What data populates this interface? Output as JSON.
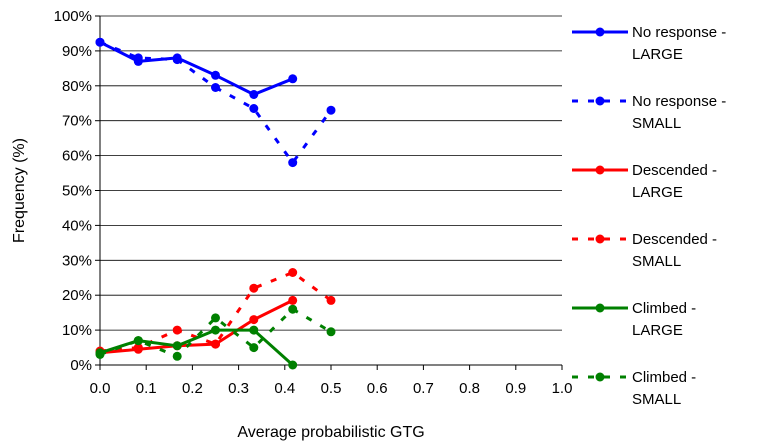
{
  "chart_data": {
    "type": "line",
    "xlabel": "Average probabilistic GTG",
    "ylabel": "Frequency (%)",
    "xlim": [
      0.0,
      1.0
    ],
    "ylim": [
      0,
      100
    ],
    "x_ticks": [
      "0.0",
      "0.1",
      "0.2",
      "0.3",
      "0.4",
      "0.5",
      "0.6",
      "0.7",
      "0.8",
      "0.9",
      "1.0"
    ],
    "y_ticks": [
      "0%",
      "10%",
      "20%",
      "30%",
      "40%",
      "50%",
      "60%",
      "70%",
      "80%",
      "90%",
      "100%"
    ],
    "grid": "horizontal",
    "legend_position": "right",
    "series": [
      {
        "legend": [
          "No response -",
          "LARGE"
        ],
        "color": "#0000FF",
        "dash": "solid",
        "points": [
          [
            0.0,
            92.5
          ],
          [
            0.083,
            87.0
          ],
          [
            0.167,
            88.0
          ],
          [
            0.25,
            83.0
          ],
          [
            0.333,
            77.5
          ],
          [
            0.417,
            82.0
          ]
        ]
      },
      {
        "legend": [
          "No response -",
          "SMALL"
        ],
        "color": "#0000FF",
        "dash": "dotted",
        "points": [
          [
            0.0,
            92.5
          ],
          [
            0.083,
            88.0
          ],
          [
            0.167,
            87.5
          ],
          [
            0.25,
            79.5
          ],
          [
            0.333,
            73.5
          ],
          [
            0.417,
            58.0
          ],
          [
            0.5,
            73.0
          ]
        ]
      },
      {
        "legend": [
          "Descended -",
          "LARGE"
        ],
        "color": "#FF0000",
        "dash": "solid",
        "points": [
          [
            0.0,
            3.5
          ],
          [
            0.083,
            4.5
          ],
          [
            0.167,
            5.5
          ],
          [
            0.25,
            6.0
          ],
          [
            0.333,
            13.0
          ],
          [
            0.417,
            18.5
          ]
        ]
      },
      {
        "legend": [
          "Descended -",
          "SMALL"
        ],
        "color": "#FF0000",
        "dash": "dotted",
        "points": [
          [
            0.0,
            4.0
          ],
          [
            0.083,
            5.0
          ],
          [
            0.167,
            10.0
          ],
          [
            0.25,
            6.0
          ],
          [
            0.333,
            22.0
          ],
          [
            0.417,
            26.5
          ],
          [
            0.5,
            18.5
          ]
        ]
      },
      {
        "legend": [
          "Climbed -",
          "LARGE"
        ],
        "color": "#008000",
        "dash": "solid",
        "points": [
          [
            0.0,
            3.5
          ],
          [
            0.083,
            7.0
          ],
          [
            0.167,
            5.5
          ],
          [
            0.25,
            10.0
          ],
          [
            0.333,
            10.0
          ],
          [
            0.417,
            0.0
          ]
        ]
      },
      {
        "legend": [
          "Climbed -",
          "SMALL"
        ],
        "color": "#008000",
        "dash": "dotted",
        "points": [
          [
            0.0,
            3.0
          ],
          [
            0.083,
            7.0
          ],
          [
            0.167,
            2.5
          ],
          [
            0.25,
            13.5
          ],
          [
            0.333,
            5.0
          ],
          [
            0.417,
            16.0
          ],
          [
            0.5,
            9.5
          ]
        ]
      }
    ]
  }
}
